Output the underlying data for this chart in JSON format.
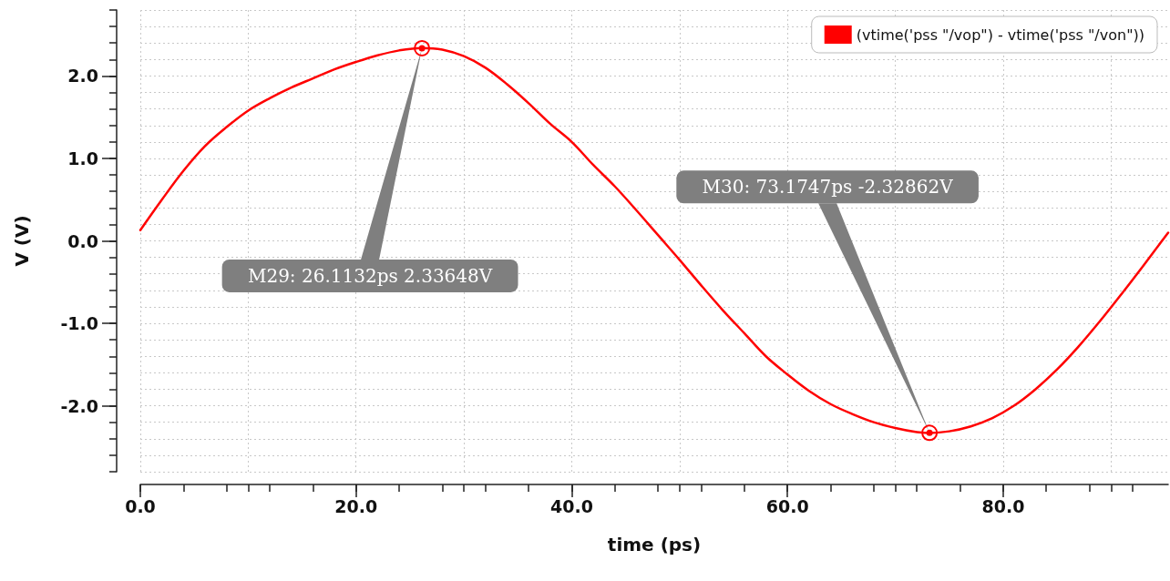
{
  "chart_data": {
    "type": "line",
    "xlabel": "time (ps)",
    "ylabel": "V (V)",
    "x": [
      0,
      2,
      4,
      6,
      8,
      10,
      12,
      14,
      16,
      18,
      20,
      22,
      24,
      26.1,
      28,
      30,
      32,
      34,
      36,
      38,
      40,
      42,
      44,
      46,
      48,
      50,
      52,
      54,
      56,
      58,
      60,
      62,
      64,
      66,
      68,
      70,
      72,
      73.2,
      75,
      77,
      79,
      81,
      83,
      85,
      87,
      89,
      91,
      93,
      95.3
    ],
    "series": [
      {
        "name": "(vtime('pss \"/vop\") - vtime('pss \"/von\"))",
        "color": "#ff0000",
        "values": [
          0.13,
          0.5,
          0.85,
          1.15,
          1.38,
          1.58,
          1.73,
          1.86,
          1.97,
          2.08,
          2.17,
          2.25,
          2.31,
          2.34,
          2.32,
          2.24,
          2.1,
          1.9,
          1.67,
          1.42,
          1.2,
          0.92,
          0.66,
          0.37,
          0.07,
          -0.23,
          -0.54,
          -0.84,
          -1.12,
          -1.4,
          -1.62,
          -1.82,
          -1.98,
          -2.1,
          -2.2,
          -2.27,
          -2.32,
          -2.33,
          -2.31,
          -2.25,
          -2.15,
          -2,
          -1.8,
          -1.56,
          -1.28,
          -0.97,
          -0.64,
          -0.3,
          0.1
        ]
      }
    ],
    "xlim": [
      0,
      95.3
    ],
    "ylim": [
      -2.8,
      2.8
    ],
    "xticks": [
      {
        "value": 0,
        "label": "0.0"
      },
      {
        "value": 10,
        "label": null
      },
      {
        "value": 20,
        "label": "20.0"
      },
      {
        "value": 30,
        "label": null
      },
      {
        "value": 40,
        "label": "40.0"
      },
      {
        "value": 50,
        "label": null
      },
      {
        "value": 60,
        "label": "60.0"
      },
      {
        "value": 70,
        "label": null
      },
      {
        "value": 80,
        "label": "80.0"
      },
      {
        "value": 90,
        "label": null
      }
    ],
    "yticks": [
      {
        "value": -2.8,
        "label": null
      },
      {
        "value": -2.6,
        "label": null
      },
      {
        "value": -2.4,
        "label": null
      },
      {
        "value": -2.2,
        "label": null
      },
      {
        "value": -2,
        "label": "-2.0"
      },
      {
        "value": -1.8,
        "label": null
      },
      {
        "value": -1.6,
        "label": null
      },
      {
        "value": -1.4,
        "label": null
      },
      {
        "value": -1.2,
        "label": null
      },
      {
        "value": -1,
        "label": "-1.0"
      },
      {
        "value": -0.8,
        "label": null
      },
      {
        "value": -0.6,
        "label": null
      },
      {
        "value": -0.4,
        "label": null
      },
      {
        "value": -0.2,
        "label": null
      },
      {
        "value": 0,
        "label": "0.0"
      },
      {
        "value": 0.2,
        "label": null
      },
      {
        "value": 0.4,
        "label": null
      },
      {
        "value": 0.6,
        "label": null
      },
      {
        "value": 0.8,
        "label": null
      },
      {
        "value": 1,
        "label": "1.0"
      },
      {
        "value": 1.2,
        "label": null
      },
      {
        "value": 1.4,
        "label": null
      },
      {
        "value": 1.6,
        "label": null
      },
      {
        "value": 1.8,
        "label": null
      },
      {
        "value": 2,
        "label": "2.0"
      },
      {
        "value": 2.2,
        "label": null
      },
      {
        "value": 2.4,
        "label": null
      },
      {
        "value": 2.6,
        "label": null
      },
      {
        "value": 2.8,
        "label": null
      }
    ],
    "grid": true,
    "legend": "top right",
    "marker": "none",
    "line_style": "solid",
    "annotations": [
      {
        "text": "M29: 26.1132ps 2.33648V",
        "x": 26.1132,
        "y": 2.33648
      },
      {
        "text": "M30: 73.1747ps -2.32862V",
        "x": 73.1747,
        "y": -2.32862
      }
    ]
  }
}
